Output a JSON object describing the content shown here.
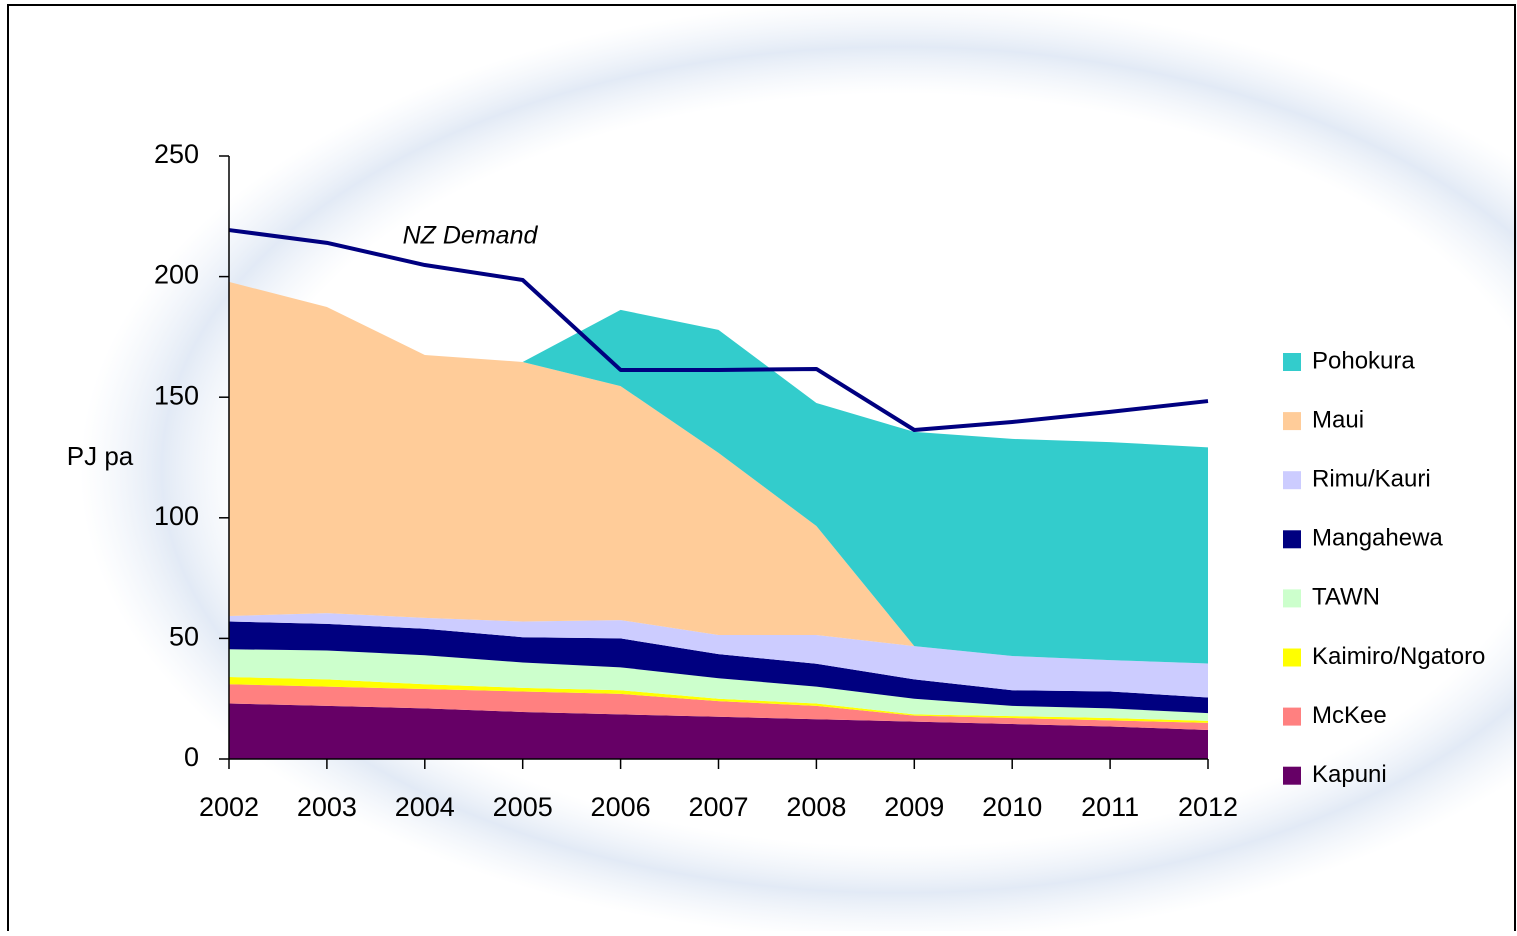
{
  "chart_data": {
    "type": "area",
    "stacked": true,
    "y_label": "PJ pa",
    "categories": [
      "2002",
      "2003",
      "2004",
      "2005",
      "2006",
      "2007",
      "2008",
      "2009",
      "2010",
      "2011",
      "2012"
    ],
    "ylim": [
      0,
      250
    ],
    "yticks": [
      0,
      50,
      100,
      150,
      200,
      250
    ],
    "legend": "right",
    "series": [
      {
        "name": "Kapuni",
        "color": "#660066",
        "values": [
          23,
          22,
          21,
          19.5,
          18.5,
          17.5,
          16.5,
          15.5,
          14.5,
          13.5,
          12
        ]
      },
      {
        "name": "McKee",
        "color": "#ff8080",
        "values": [
          8,
          8,
          8,
          8.5,
          8.5,
          6.5,
          5.5,
          2.5,
          2.5,
          2.5,
          3
        ]
      },
      {
        "name": "Kaimiro/Ngatoro",
        "color": "#ffff00",
        "values": [
          3,
          3,
          2,
          1.5,
          1.5,
          1,
          1,
          0.5,
          0.8,
          1,
          0.8
        ]
      },
      {
        "name": "TAWN",
        "color": "#ccffcc",
        "values": [
          11.5,
          12,
          12,
          10.5,
          9.5,
          8.5,
          7,
          6.5,
          4.2,
          4,
          3.2
        ]
      },
      {
        "name": "Mangahewa",
        "color": "#000080",
        "values": [
          11.5,
          11,
          11,
          10.5,
          12,
          10,
          9.5,
          8,
          6.5,
          7,
          6.5
        ]
      },
      {
        "name": "Rimu/Kauri",
        "color": "#ccccff",
        "values": [
          2.3,
          4.5,
          4.5,
          6.5,
          7.6,
          7.9,
          11.9,
          13.8,
          14.2,
          13,
          14.1
        ]
      },
      {
        "name": "Maui",
        "color": "#ffcc99",
        "values": [
          138.5,
          126.9,
          109,
          107.6,
          97,
          75.5,
          45.2,
          0,
          0,
          0,
          0
        ]
      },
      {
        "name": "Pohokura",
        "color": "#33cccc",
        "values": [
          0,
          0,
          0,
          0,
          31.6,
          51,
          51,
          88.8,
          90,
          90.4,
          89.6
        ]
      }
    ],
    "lines": [
      {
        "name": "NZ Demand",
        "color": "#000080",
        "values": [
          219.3,
          214,
          204.8,
          198.6,
          161.3,
          161.3,
          161.7,
          136.4,
          139.7,
          143.9,
          148.4
        ]
      }
    ]
  }
}
